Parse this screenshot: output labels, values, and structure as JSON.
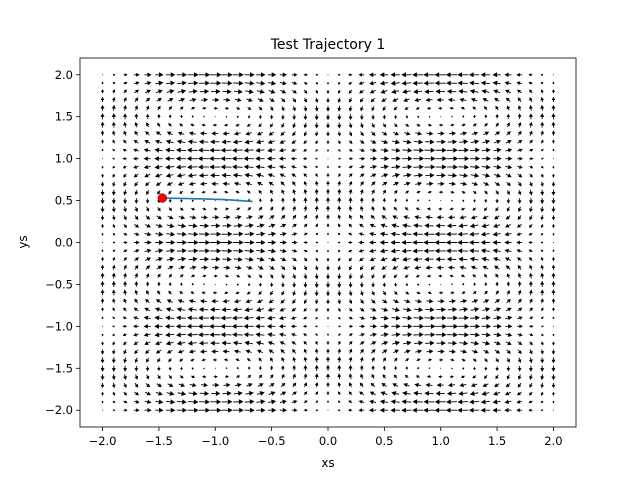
{
  "chart_data": {
    "type": "quiver",
    "title": "Test Trajectory 1",
    "xlabel": "xs",
    "ylabel": "ys",
    "xlim": [
      -2.2,
      2.2
    ],
    "ylim": [
      -2.2,
      2.2
    ],
    "xticks": [
      -2.0,
      -1.5,
      -1.0,
      -0.5,
      0.0,
      0.5,
      1.0,
      1.5,
      2.0
    ],
    "xtick_labels": [
      "−2.0",
      "−1.5",
      "−1.0",
      "−0.5",
      "0.0",
      "0.5",
      "1.0",
      "1.5",
      "2.0"
    ],
    "yticks": [
      -2.0,
      -1.5,
      -1.0,
      -0.5,
      0.0,
      0.5,
      1.0,
      1.5,
      2.0
    ],
    "ytick_labels": [
      "−2.0",
      "−1.5",
      "−1.0",
      "−0.5",
      "0.0",
      "0.5",
      "1.0",
      "1.5",
      "2.0"
    ],
    "grid": false,
    "legend": "none",
    "vector_field": {
      "x_range": [
        -2.0,
        2.0
      ],
      "y_range": [
        -2.0,
        2.0
      ],
      "grid_count": 41,
      "color": "#000000"
    },
    "trajectory": {
      "color": "#1f77b4",
      "x": [
        -1.47,
        -1.3,
        -1.1,
        -0.9,
        -0.67
      ],
      "y": [
        0.53,
        0.525,
        0.52,
        0.51,
        0.49
      ]
    },
    "start_point": {
      "x": -1.47,
      "y": 0.53,
      "color": "#ff0000"
    }
  }
}
